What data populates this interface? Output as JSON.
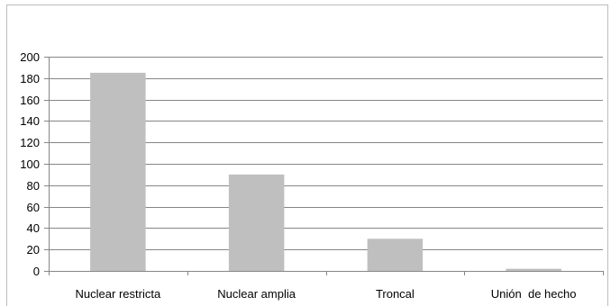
{
  "chart_data": {
    "type": "bar",
    "categories": [
      "Nuclear restricta",
      "Nuclear amplia",
      "Troncal",
      "Unión  de hecho"
    ],
    "values": [
      185,
      90,
      30,
      2
    ],
    "ylim": [
      0,
      200
    ],
    "yticks": [
      0,
      20,
      40,
      60,
      80,
      100,
      120,
      140,
      160,
      180,
      200
    ],
    "grid": true,
    "legend": "none",
    "colors": {
      "bar": "#bfbfbf",
      "grid": "#868686",
      "axis": "#868686"
    }
  }
}
